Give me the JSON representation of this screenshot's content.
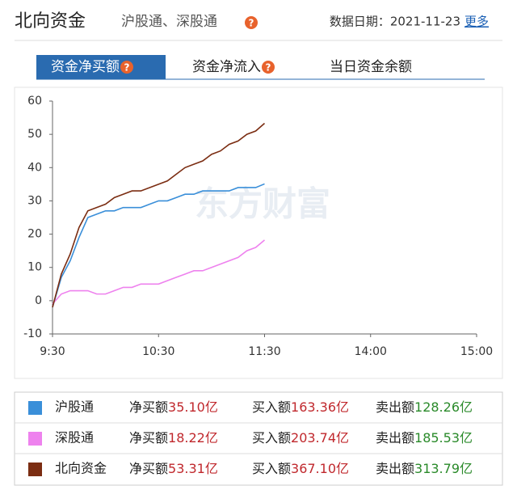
{
  "header": {
    "title": "北向资金",
    "subtitle": "沪股通、深股通",
    "help": "?",
    "date": "数据日期：2021-11-23",
    "more": "更多"
  },
  "tabs": [
    "资金净买额",
    "资金净流入",
    "当日资金余额"
  ],
  "active_tab": 0,
  "chart_data": {
    "type": "line",
    "watermark": "东方财富",
    "x": [
      0,
      5,
      10,
      15,
      20,
      25,
      30,
      35,
      40,
      45,
      50,
      55,
      60,
      65,
      70,
      75,
      80,
      85,
      90,
      95,
      100,
      105,
      110,
      115,
      120
    ],
    "xlim": [
      0,
      240
    ],
    "xticks": [
      {
        "value": 0,
        "label": "9:30"
      },
      {
        "value": 60,
        "label": "10:30"
      },
      {
        "value": 120,
        "label": "11:30"
      },
      {
        "value": 180,
        "label": "14:00"
      },
      {
        "value": 240,
        "label": "15:00"
      }
    ],
    "ylim": [
      -10,
      60
    ],
    "yticks": [
      -10,
      0,
      10,
      20,
      30,
      40,
      50,
      60
    ],
    "grid": false,
    "series": [
      {
        "name": "沪股通",
        "color": "#3a8fd9",
        "values": [
          -2,
          7,
          12,
          19,
          25,
          26,
          27,
          27,
          28,
          28,
          28,
          29,
          30,
          30,
          31,
          32,
          32,
          33,
          33,
          33,
          33,
          34,
          34,
          34,
          35.1
        ]
      },
      {
        "name": "深股通",
        "color": "#ee82ee",
        "values": [
          -1,
          2,
          3,
          3,
          3,
          2,
          2,
          3,
          4,
          4,
          5,
          5,
          5,
          6,
          7,
          8,
          9,
          9,
          10,
          11,
          12,
          13,
          15,
          16,
          18.22
        ]
      },
      {
        "name": "北向资金",
        "color": "#7b2d12",
        "values": [
          -2,
          8,
          14,
          22,
          27,
          28,
          29,
          31,
          32,
          33,
          33,
          34,
          35,
          36,
          38,
          40,
          41,
          42,
          44,
          45,
          47,
          48,
          50,
          51,
          53.31
        ]
      }
    ]
  },
  "summary": {
    "rows": [
      [
        "净买额",
        "35.10亿",
        "买入额",
        "163.36亿",
        "卖出额",
        "128.26亿"
      ],
      [
        "净买额",
        "18.22亿",
        "买入额",
        "203.74亿",
        "卖出额",
        "185.53亿"
      ],
      [
        "净买额",
        "53.31亿",
        "买入额",
        "367.10亿",
        "卖出额",
        "313.79亿"
      ]
    ]
  }
}
